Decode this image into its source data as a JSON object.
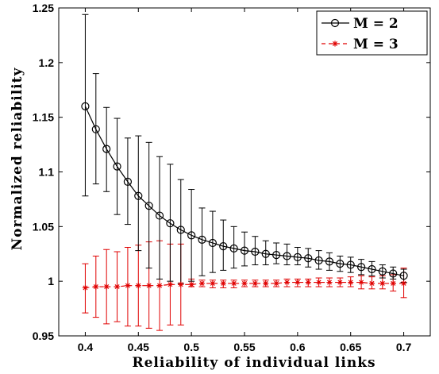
{
  "chart_data": {
    "type": "line",
    "title": "",
    "xlabel": "Reliability of individual links",
    "ylabel": "Normalized reliability",
    "xlim": [
      0.375,
      0.725
    ],
    "ylim": [
      0.95,
      1.25
    ],
    "xticks": [
      0.4,
      0.45,
      0.5,
      0.55,
      0.6,
      0.65,
      0.7
    ],
    "xtick_labels": [
      "0.4",
      "0.45",
      "0.5",
      "0.55",
      "0.6",
      "0.65",
      "0.7"
    ],
    "yticks": [
      0.95,
      1.0,
      1.05,
      1.1,
      1.15,
      1.2,
      1.25
    ],
    "ytick_labels": [
      "0.95",
      "1",
      "1.05",
      "1.1",
      "1.15",
      "1.2",
      "1.25"
    ],
    "grid": false,
    "legend_position": "top-right",
    "x": [
      0.4,
      0.41,
      0.42,
      0.43,
      0.44,
      0.45,
      0.46,
      0.47,
      0.48,
      0.49,
      0.5,
      0.51,
      0.52,
      0.53,
      0.54,
      0.55,
      0.56,
      0.57,
      0.58,
      0.59,
      0.6,
      0.61,
      0.62,
      0.63,
      0.64,
      0.65,
      0.66,
      0.67,
      0.68,
      0.69,
      0.7
    ],
    "series": [
      {
        "name": "M = 2",
        "color": "#000000",
        "marker": "circle",
        "line_style": "solid",
        "values": [
          1.16,
          1.139,
          1.121,
          1.105,
          1.091,
          1.078,
          1.069,
          1.06,
          1.053,
          1.047,
          1.042,
          1.038,
          1.035,
          1.032,
          1.03,
          1.028,
          1.027,
          1.025,
          1.024,
          1.023,
          1.022,
          1.021,
          1.019,
          1.018,
          1.016,
          1.015,
          1.013,
          1.011,
          1.009,
          1.007,
          1.005
        ],
        "err_low": [
          1.078,
          1.089,
          1.082,
          1.061,
          1.052,
          1.028,
          1.012,
          1.002,
          1.0,
          0.998,
          1.0,
          1.005,
          1.008,
          1.01,
          1.012,
          1.014,
          1.015,
          1.015,
          1.016,
          1.015,
          1.015,
          1.013,
          1.011,
          1.01,
          1.009,
          1.008,
          1.006,
          1.005,
          1.003,
          1.002,
          0.999
        ],
        "err_high": [
          1.244,
          1.19,
          1.159,
          1.149,
          1.131,
          1.133,
          1.127,
          1.114,
          1.107,
          1.093,
          1.084,
          1.067,
          1.064,
          1.056,
          1.05,
          1.045,
          1.041,
          1.037,
          1.035,
          1.034,
          1.031,
          1.03,
          1.028,
          1.026,
          1.023,
          1.022,
          1.02,
          1.018,
          1.015,
          1.013,
          1.011
        ]
      },
      {
        "name": "M = 3",
        "color": "#e00000",
        "marker": "star",
        "line_style": "dashed",
        "values": [
          0.994,
          0.995,
          0.995,
          0.995,
          0.996,
          0.996,
          0.996,
          0.996,
          0.997,
          0.997,
          0.997,
          0.998,
          0.998,
          0.998,
          0.998,
          0.998,
          0.998,
          0.998,
          0.998,
          0.999,
          0.999,
          0.999,
          0.999,
          0.999,
          0.999,
          0.999,
          0.999,
          0.998,
          0.998,
          0.998,
          0.998
        ],
        "err_low": [
          0.971,
          0.967,
          0.961,
          0.963,
          0.959,
          0.959,
          0.957,
          0.955,
          0.96,
          0.96,
          0.995,
          0.995,
          0.994,
          0.994,
          0.994,
          0.995,
          0.995,
          0.995,
          0.995,
          0.995,
          0.995,
          0.995,
          0.995,
          0.995,
          0.995,
          0.995,
          0.993,
          0.993,
          0.993,
          0.991,
          0.985
        ],
        "err_high": [
          1.016,
          1.023,
          1.029,
          1.027,
          1.031,
          1.033,
          1.036,
          1.037,
          1.034,
          1.034,
          1.002,
          1.001,
          1.001,
          1.001,
          1.001,
          1.001,
          1.001,
          1.001,
          1.001,
          1.002,
          1.002,
          1.002,
          1.003,
          1.003,
          1.003,
          1.004,
          1.005,
          1.004,
          1.005,
          1.006,
          1.012
        ]
      }
    ]
  }
}
